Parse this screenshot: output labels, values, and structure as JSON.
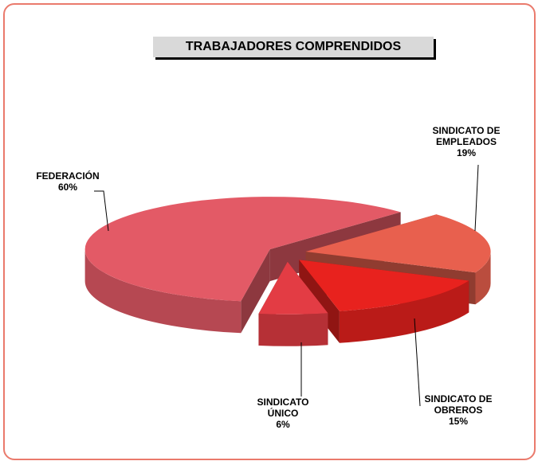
{
  "chart_data": {
    "type": "pie",
    "title": "TRABAJADORES COMPRENDIDOS",
    "categories": [
      "FEDERACIÓN",
      "SINDICATO DE EMPLEADOS",
      "SINDICATO DE OBREROS",
      "SINDICATO ÚNICO"
    ],
    "values": [
      60,
      19,
      15,
      6
    ],
    "value_labels": [
      "60%",
      "19%",
      "15%",
      "6%"
    ],
    "colors": [
      "#e35a66",
      "#e8604e",
      "#e8221e",
      "#e33c44"
    ]
  }
}
